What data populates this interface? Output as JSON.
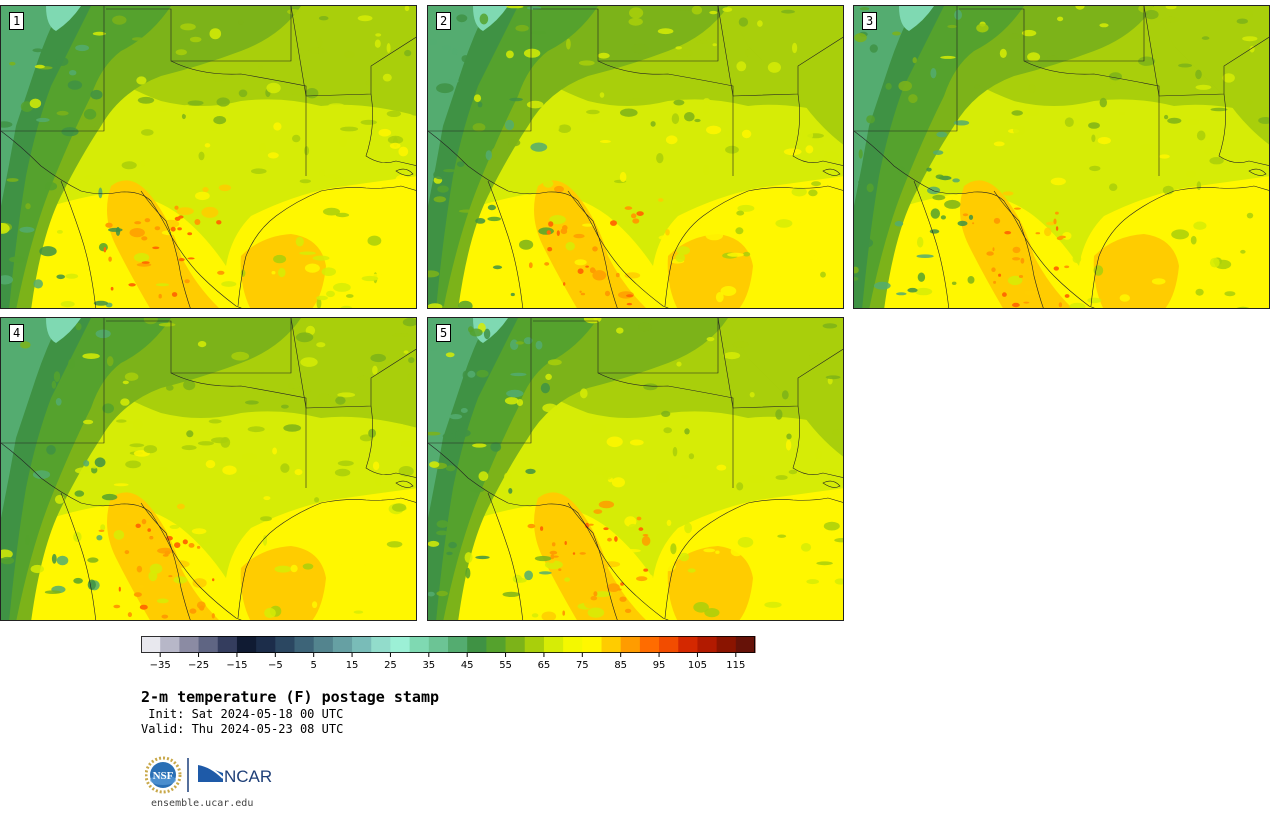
{
  "panels": [
    {
      "label": "1"
    },
    {
      "label": "2"
    },
    {
      "label": "3"
    },
    {
      "label": "4"
    },
    {
      "label": "5"
    }
  ],
  "colorbar": {
    "ticks": [
      "−35",
      "−25",
      "−15",
      "−5",
      "5",
      "15",
      "25",
      "35",
      "45",
      "55",
      "65",
      "75",
      "85",
      "95",
      "105",
      "115"
    ],
    "colors": [
      "#e8e8ee",
      "#b7b7c8",
      "#8b8ba3",
      "#5f6583",
      "#343d5e",
      "#101b33",
      "#1c2d4a",
      "#2b4761",
      "#3d6478",
      "#53848e",
      "#66a0a3",
      "#79bcb8",
      "#92dccb",
      "#9cf0d6",
      "#7fd9b2",
      "#6cc495",
      "#54ac70",
      "#3f9244",
      "#55a22d",
      "#7cb319",
      "#a9cf0b",
      "#d6ec06",
      "#f4f800",
      "#fff700",
      "#ffcc00",
      "#ff9c00",
      "#ff6c00",
      "#f24c00",
      "#d42800",
      "#b21a00",
      "#8a1400",
      "#661208"
    ]
  },
  "title": "2-m temperature (F) postage stamp",
  "init": " Init: Sat 2024-05-18 00 UTC",
  "valid": "Valid: Thu 2024-05-23 08 UTC",
  "logos": {
    "nsf": "NSF",
    "ncar": "NCAR"
  },
  "url": "ensemble.ucar.edu"
}
